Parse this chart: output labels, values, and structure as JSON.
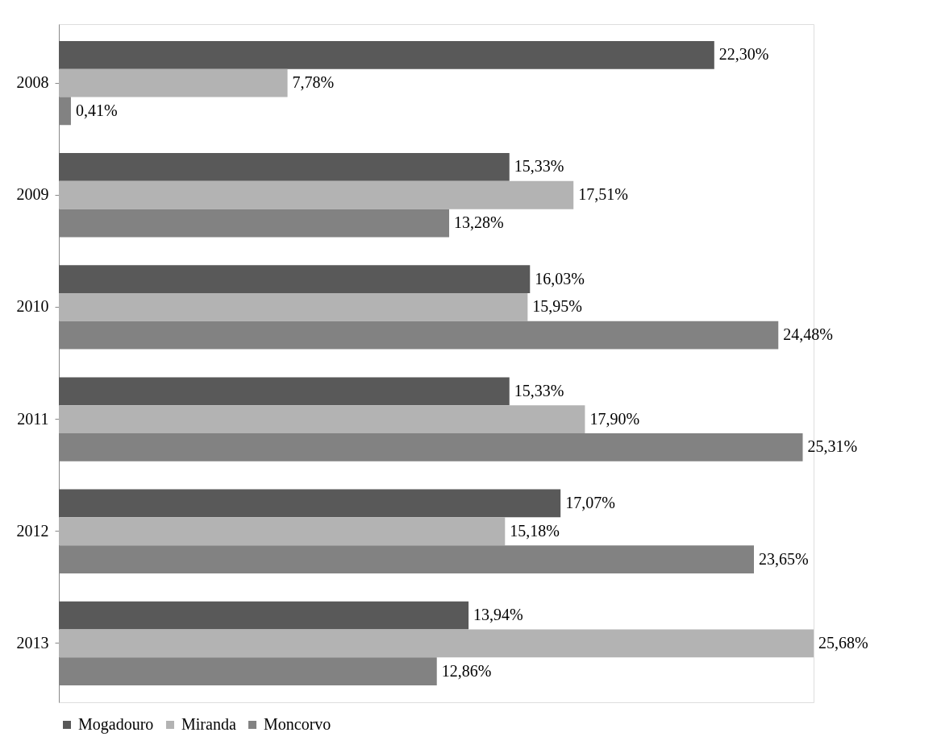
{
  "chart_data": {
    "type": "bar",
    "orientation": "horizontal",
    "categories": [
      "2008",
      "2009",
      "2010",
      "2011",
      "2012",
      "2013"
    ],
    "series": [
      {
        "name": "Mogadouro",
        "color": "#595959",
        "values": [
          22.3,
          15.33,
          16.03,
          15.33,
          17.07,
          13.94
        ],
        "value_labels": [
          "22,30%",
          "15,33%",
          "16,03%",
          "15,33%",
          "17,07%",
          "13,94%"
        ]
      },
      {
        "name": "Miranda",
        "color": "#b3b3b3",
        "values": [
          7.78,
          17.51,
          15.95,
          17.9,
          15.18,
          25.68
        ],
        "value_labels": [
          "7,78%",
          "17,51%",
          "15,95%",
          "17,90%",
          "15,18%",
          "25,68%"
        ]
      },
      {
        "name": "Moncorvo",
        "color": "#828282",
        "values": [
          0.41,
          13.28,
          24.48,
          25.31,
          23.65,
          12.86
        ],
        "value_labels": [
          "0,41%",
          "13,28%",
          "24,48%",
          "25,31%",
          "23,65%",
          "12,86%"
        ]
      }
    ],
    "legend": "bottom",
    "grid": false,
    "tick_labels": "y"
  }
}
